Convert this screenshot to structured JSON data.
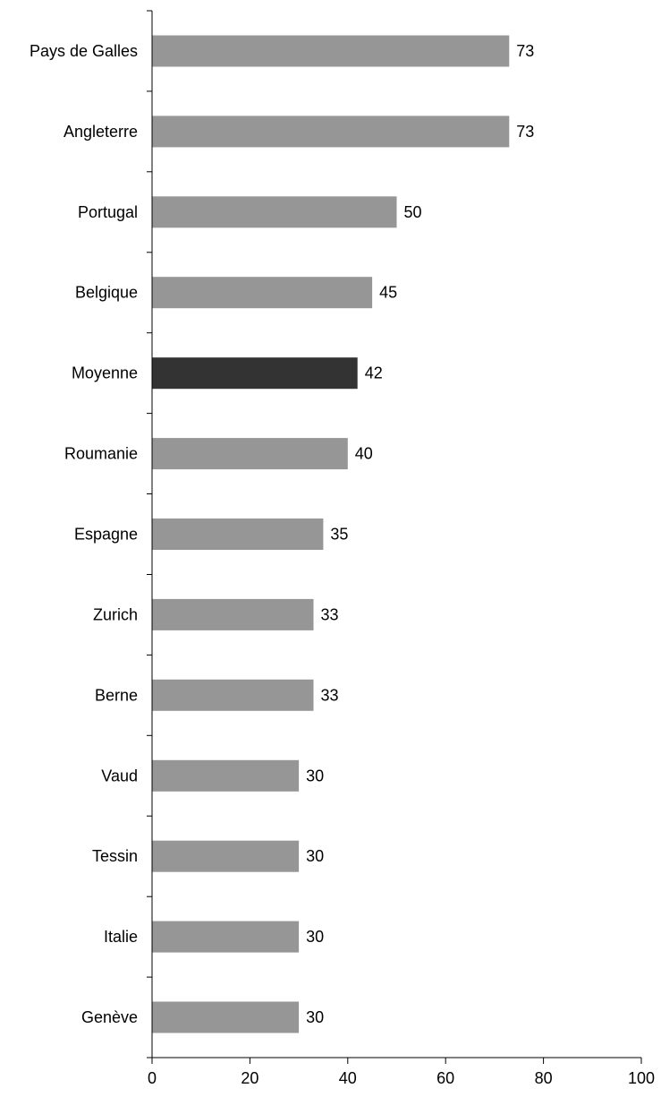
{
  "chart_data": {
    "type": "bar",
    "orientation": "horizontal",
    "title": "",
    "xlabel": "",
    "ylabel": "",
    "categories": [
      "Pays de Galles",
      "Angleterre",
      "Portugal",
      "Belgique",
      "Moyenne",
      "Roumanie",
      "Espagne",
      "Zurich",
      "Berne",
      "Vaud",
      "Tessin",
      "Italie",
      "Genève"
    ],
    "values": [
      73,
      73,
      50,
      45,
      42,
      40,
      35,
      33,
      33,
      30,
      30,
      30,
      30
    ],
    "value_labels": [
      "73",
      "73",
      "50",
      "45",
      "42",
      "40",
      "35",
      "33",
      "33",
      "30",
      "30",
      "30",
      "30"
    ],
    "highlight": "Moyenne",
    "xlim": [
      0,
      100
    ],
    "x_ticks": [
      0,
      20,
      40,
      60,
      80,
      100
    ],
    "x_tick_labels": [
      "0",
      "20",
      "40",
      "60",
      "80",
      "100"
    ],
    "grid": false,
    "legend": "none",
    "colors": {
      "bar": "#969696",
      "highlight": "#333333",
      "axis": "#000000",
      "text": "#000000"
    }
  }
}
